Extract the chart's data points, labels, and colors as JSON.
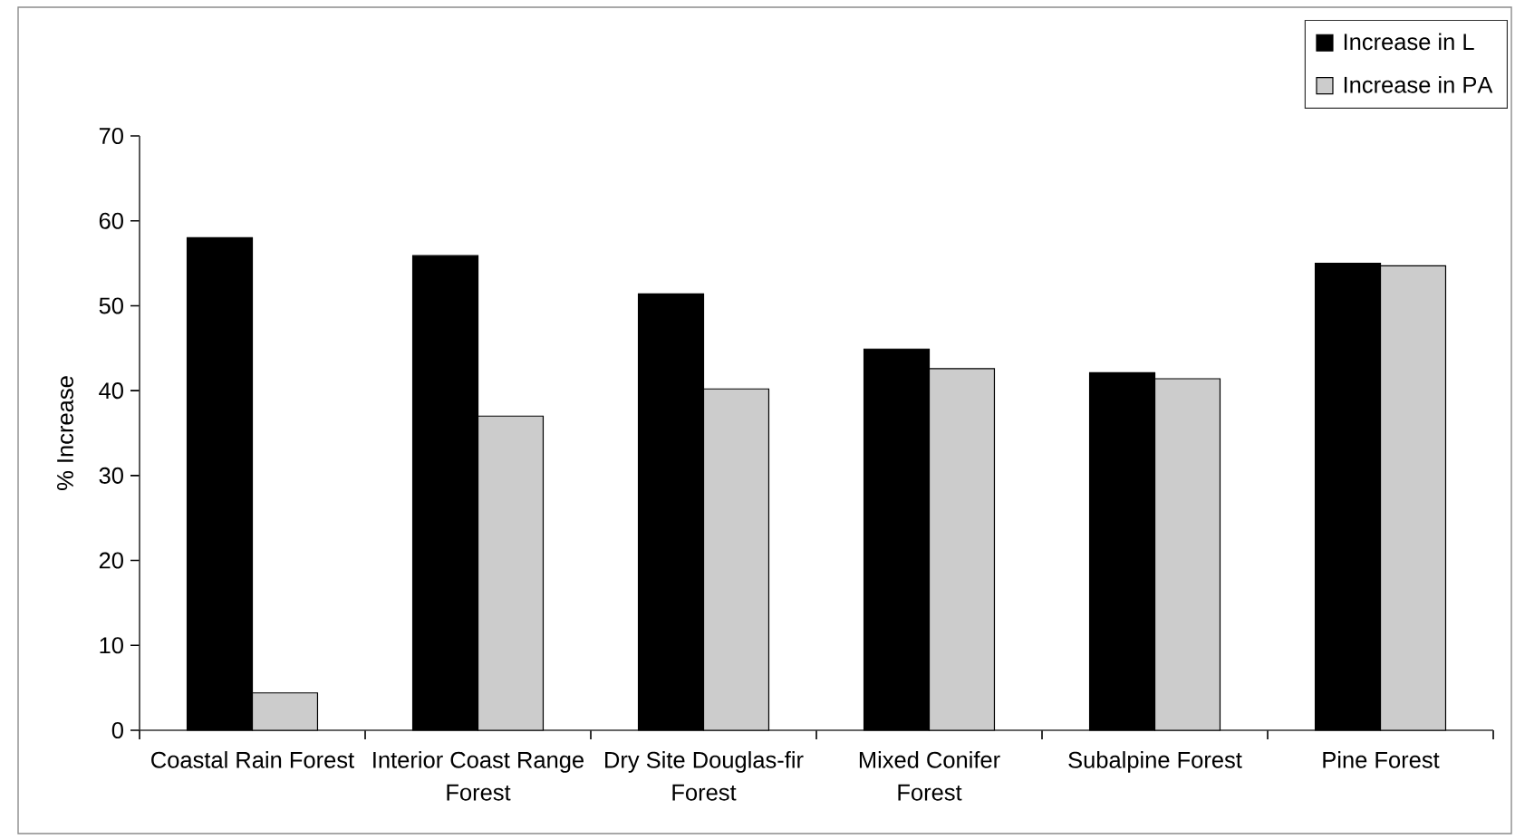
{
  "chart_data": {
    "type": "bar",
    "ylabel": "% Increase",
    "categories": [
      "Coastal Rain Forest",
      "Interior Coast Range Forest",
      "Dry Site Douglas-fir Forest",
      "Mixed Conifer Forest",
      "Subalpine Forest",
      "Pine Forest"
    ],
    "series": [
      {
        "name": "Increase in L",
        "color": "#000000",
        "values": [
          58,
          55.9,
          51.4,
          44.9,
          42.1,
          55
        ]
      },
      {
        "name": "Increase in PA",
        "color": "#cccccc",
        "values": [
          4.4,
          37,
          40.2,
          42.6,
          41.4,
          54.7
        ]
      }
    ],
    "ylim": [
      0,
      70
    ],
    "yticks": [
      0,
      10,
      20,
      30,
      40,
      50,
      60,
      70
    ],
    "legend": "top right"
  }
}
